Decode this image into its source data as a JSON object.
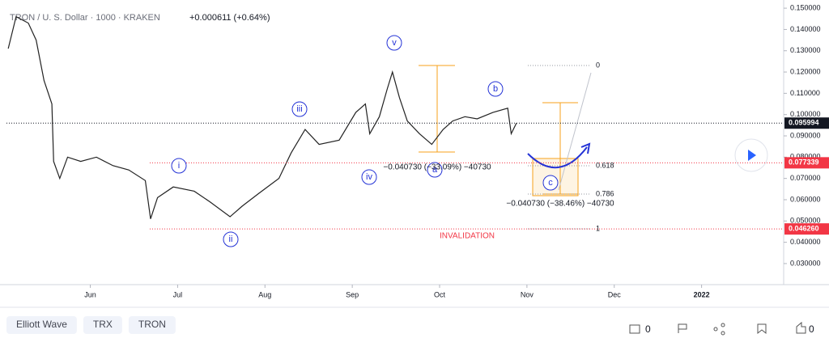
{
  "header": {
    "symbol": "TRON / U. S. Dollar · 1000 · KRAKEN",
    "change": "+0.000611 (+0.64%)"
  },
  "chart_data": {
    "type": "line",
    "color": "#222222",
    "x": [
      5.06,
      5.15,
      5.29,
      5.38,
      5.47,
      5.56,
      5.58,
      5.65,
      5.74,
      5.89,
      6.07,
      6.26,
      6.44,
      6.63,
      6.69,
      6.77,
      6.95,
      7.19,
      7.37,
      7.6,
      7.74,
      7.93,
      8.16,
      8.3,
      8.46,
      8.62,
      8.85,
      9.04,
      9.15,
      9.2,
      9.31,
      9.4,
      9.46,
      9.54,
      9.63,
      9.77,
      9.91,
      10.04,
      10.15,
      10.29,
      10.43,
      10.61,
      10.78,
      10.82,
      10.88
    ],
    "values": [
      0.131,
      0.146,
      0.143,
      0.135,
      0.116,
      0.105,
      0.078,
      0.07,
      0.08,
      0.078,
      0.08,
      0.076,
      0.074,
      0.069,
      0.051,
      0.061,
      0.066,
      0.064,
      0.059,
      0.052,
      0.057,
      0.063,
      0.07,
      0.082,
      0.093,
      0.086,
      0.088,
      0.101,
      0.105,
      0.091,
      0.099,
      0.112,
      0.12,
      0.108,
      0.097,
      0.091,
      0.086,
      0.093,
      0.097,
      0.099,
      0.098,
      0.101,
      0.103,
      0.091,
      0.096
    ],
    "xlim": [
      5.04,
      13.94
    ],
    "xticks": [
      {
        "value": 6,
        "label": "Jun"
      },
      {
        "value": 7,
        "label": "Jul"
      },
      {
        "value": 8,
        "label": "Aug"
      },
      {
        "value": 9,
        "label": "Sep"
      },
      {
        "value": 10,
        "label": "Oct"
      },
      {
        "value": 11,
        "label": "Nov"
      },
      {
        "value": 12,
        "label": "Dec"
      },
      {
        "value": 13,
        "label": "2022"
      }
    ],
    "ylim": [
      0.0201,
      0.1508
    ],
    "yticks": [
      {
        "value": 0.03,
        "label": "0.030000"
      },
      {
        "value": 0.04,
        "label": "0.040000"
      },
      {
        "value": 0.05,
        "label": "0.050000"
      },
      {
        "value": 0.06,
        "label": "0.060000"
      },
      {
        "value": 0.07,
        "label": "0.070000"
      },
      {
        "value": 0.08,
        "label": "0.080000"
      },
      {
        "value": 0.09,
        "label": "0.090000"
      },
      {
        "value": 0.1,
        "label": "0.100000"
      },
      {
        "value": 0.11,
        "label": "0.110000"
      },
      {
        "value": 0.12,
        "label": "0.120000"
      },
      {
        "value": 0.13,
        "label": "0.130000"
      },
      {
        "value": 0.14,
        "label": "0.140000"
      },
      {
        "value": 0.15,
        "label": "0.150000"
      }
    ],
    "price_tags": [
      {
        "value": 0.095994,
        "label": "0.095994",
        "color": "#131722"
      },
      {
        "value": 0.077339,
        "label": "0.077339",
        "color": "#f23645"
      },
      {
        "value": 0.04626,
        "label": "0.046260",
        "color": "#f23645"
      }
    ],
    "waves": [
      "i",
      "ii",
      "iii",
      "iv",
      "v",
      "a",
      "b",
      "c"
    ],
    "fib": [
      "0",
      "0.618",
      "0.786",
      "1"
    ],
    "measures": [
      "−0.040730 (−33.09%) −40730",
      "−0.040730 (−38.46%) −40730"
    ],
    "invalidation": "INVALIDATION"
  },
  "footer": {
    "tags": [
      "Elliott Wave",
      "TRX",
      "TRON"
    ],
    "comments": 0,
    "likes": 0
  }
}
